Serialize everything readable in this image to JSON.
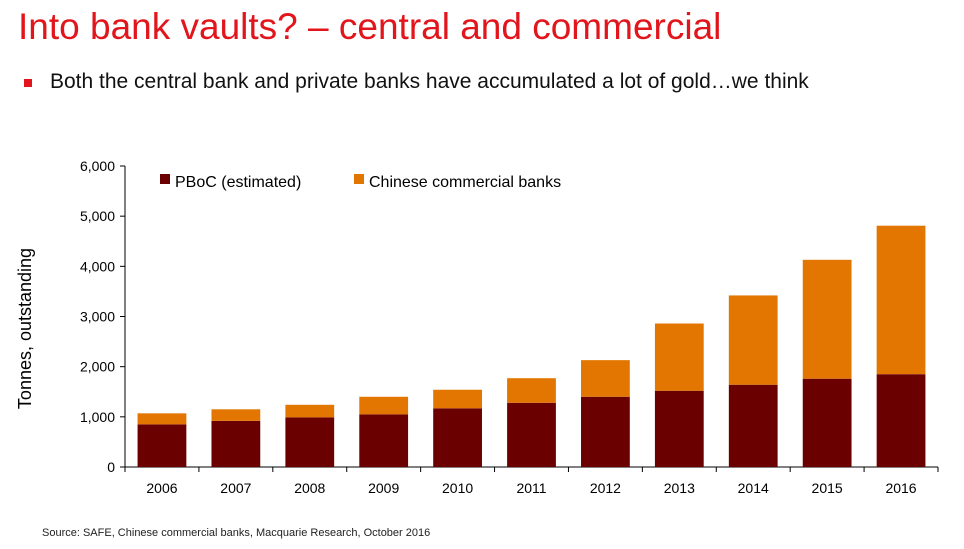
{
  "slide": {
    "title": "Into bank vaults? – central and commercial",
    "bullet": "Both the central bank and private banks have accumulated a lot of gold…we think",
    "source": "Source: SAFE, Chinese commercial banks, Macquarie Research, October 2016"
  },
  "colors": {
    "title": "#e2151c",
    "pboc": "#6b0000",
    "commercial": "#e27600"
  },
  "chart_data": {
    "type": "bar",
    "stacked": true,
    "categories": [
      "2006",
      "2007",
      "2008",
      "2009",
      "2010",
      "2011",
      "2012",
      "2013",
      "2014",
      "2015",
      "2016"
    ],
    "series": [
      {
        "name": "PBoC (estimated)",
        "values": [
          850,
          920,
          990,
          1050,
          1170,
          1280,
          1400,
          1520,
          1640,
          1760,
          1850
        ]
      },
      {
        "name": "Chinese commercial banks",
        "values": [
          220,
          230,
          250,
          350,
          370,
          490,
          730,
          1340,
          1780,
          2370,
          2960
        ]
      }
    ],
    "ylabel": "Tonnes, outstanding",
    "xlabel": "",
    "ylim": [
      0,
      6000
    ],
    "yticks": [
      "0",
      "1,000",
      "2,000",
      "3,000",
      "4,000",
      "5,000",
      "6,000"
    ],
    "legend_position": "top-left",
    "grid": false
  }
}
